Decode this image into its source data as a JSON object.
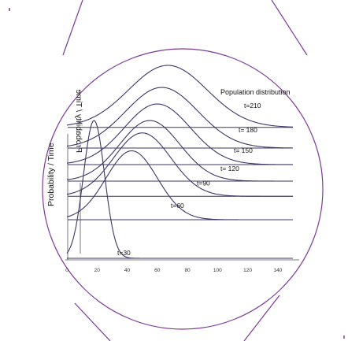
{
  "colors": {
    "accent": "#7b3a96",
    "curve": "#3d3668",
    "axis": "#555555"
  },
  "chart_data": {
    "type": "line",
    "title": "Population distribution",
    "ylabel": "Probability / Time",
    "ylabel_mirrored": "Probability / Time",
    "xlabel": "",
    "x_ticks": [
      "0",
      "20",
      "40",
      "60",
      "80",
      "100",
      "120",
      "140"
    ],
    "xlim": [
      0,
      150
    ],
    "series": [
      {
        "name": "t=30",
        "label": "t=30",
        "mean": 18,
        "sd": 7,
        "peak": 1.0,
        "offset": 0.0
      },
      {
        "name": "t=60",
        "label": "t=60",
        "mean": 43,
        "sd": 17,
        "peak": 0.5,
        "offset": 0.28
      },
      {
        "name": "t=90",
        "label": "t=90",
        "mean": 50,
        "sd": 19,
        "peak": 0.46,
        "offset": 0.45
      },
      {
        "name": "t=120",
        "label": "t= 120",
        "mean": 55,
        "sd": 20,
        "peak": 0.44,
        "offset": 0.56
      },
      {
        "name": "t=150",
        "label": "t= 150",
        "mean": 60,
        "sd": 22,
        "peak": 0.44,
        "offset": 0.68
      },
      {
        "name": "t=180",
        "label": "t= 180",
        "mean": 63,
        "sd": 24,
        "peak": 0.44,
        "offset": 0.8
      },
      {
        "name": "t=210",
        "label": "t=210",
        "mean": 67,
        "sd": 26,
        "peak": 0.45,
        "offset": 0.95
      }
    ]
  }
}
